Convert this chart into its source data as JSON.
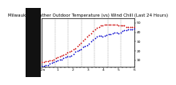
{
  "title": "Milwaukee Weather Outdoor Temperature (vs) Wind Chill (Last 24 Hours)",
  "temp_color": "#cc0000",
  "windchill_color": "#0000cc",
  "background_color": "#ffffff",
  "plot_bg_color": "#ffffff",
  "left_bg_color": "#222222",
  "ylim": [
    3,
    55
  ],
  "ytick_values": [
    10,
    20,
    30,
    40,
    50
  ],
  "ytick_labels": [
    "10",
    "20",
    "30",
    "40",
    "50"
  ],
  "temp_values": [
    8,
    8,
    9,
    9,
    10,
    10,
    11,
    12,
    13,
    14,
    15,
    16,
    17,
    18,
    19,
    20,
    22,
    23,
    25,
    27,
    29,
    31,
    33,
    35,
    37,
    39,
    41,
    43,
    45,
    46,
    47,
    47,
    48,
    48,
    48,
    48,
    48,
    48,
    48,
    47,
    47,
    47,
    47,
    46,
    46,
    46,
    46,
    46
  ],
  "windchill_values": [
    4,
    4,
    5,
    5,
    6,
    7,
    8,
    9,
    10,
    11,
    11,
    12,
    13,
    14,
    14,
    15,
    17,
    19,
    20,
    21,
    22,
    24,
    25,
    26,
    28,
    30,
    32,
    34,
    35,
    36,
    36,
    35,
    36,
    37,
    38,
    38,
    39,
    40,
    40,
    39,
    40,
    41,
    42,
    42,
    43,
    43,
    43,
    44
  ],
  "grid_color": "#888888",
  "num_vgrid": 8,
  "title_fontsize": 4.0,
  "tick_fontsize": 3.2,
  "marker_size": 1.5,
  "num_points": 48
}
